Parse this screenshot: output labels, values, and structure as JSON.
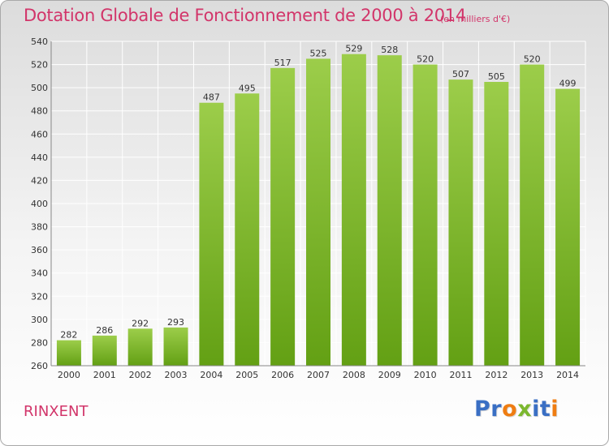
{
  "header": {
    "title": "Dotation Globale de Fonctionnement de 2000 à 2014",
    "subtitle": "(en milliers d'€)"
  },
  "footer": {
    "commune": "RINXENT",
    "logo_letters": [
      "P",
      "r",
      "o",
      "x",
      "i",
      "t",
      "i"
    ],
    "logo_colors": [
      "#3a6fc4",
      "#3a6fc4",
      "#ef7d12",
      "#7cb82f",
      "#3a6fc4",
      "#3a6fc4",
      "#ef7d12"
    ]
  },
  "colors": {
    "title": "#d2356a",
    "bar_top": "#9ccd4a",
    "bar_bottom": "#63a014",
    "grid": "#ffffff",
    "axis_text": "#333333"
  },
  "chart_data": {
    "type": "bar",
    "categories": [
      "2000",
      "2001",
      "2002",
      "2003",
      "2004",
      "2005",
      "2006",
      "2007",
      "2008",
      "2009",
      "2010",
      "2011",
      "2012",
      "2013",
      "2014"
    ],
    "values": [
      282,
      286,
      292,
      293,
      487,
      495,
      517,
      525,
      529,
      528,
      520,
      507,
      505,
      520,
      499
    ],
    "ylim": [
      260,
      540
    ],
    "yticks": [
      260,
      280,
      300,
      320,
      340,
      360,
      380,
      400,
      420,
      440,
      460,
      480,
      500,
      520,
      540
    ],
    "grid": true,
    "data_labels": true,
    "title": "Dotation Globale de Fonctionnement de 2000 à 2014",
    "xlabel": "",
    "ylabel": ""
  }
}
